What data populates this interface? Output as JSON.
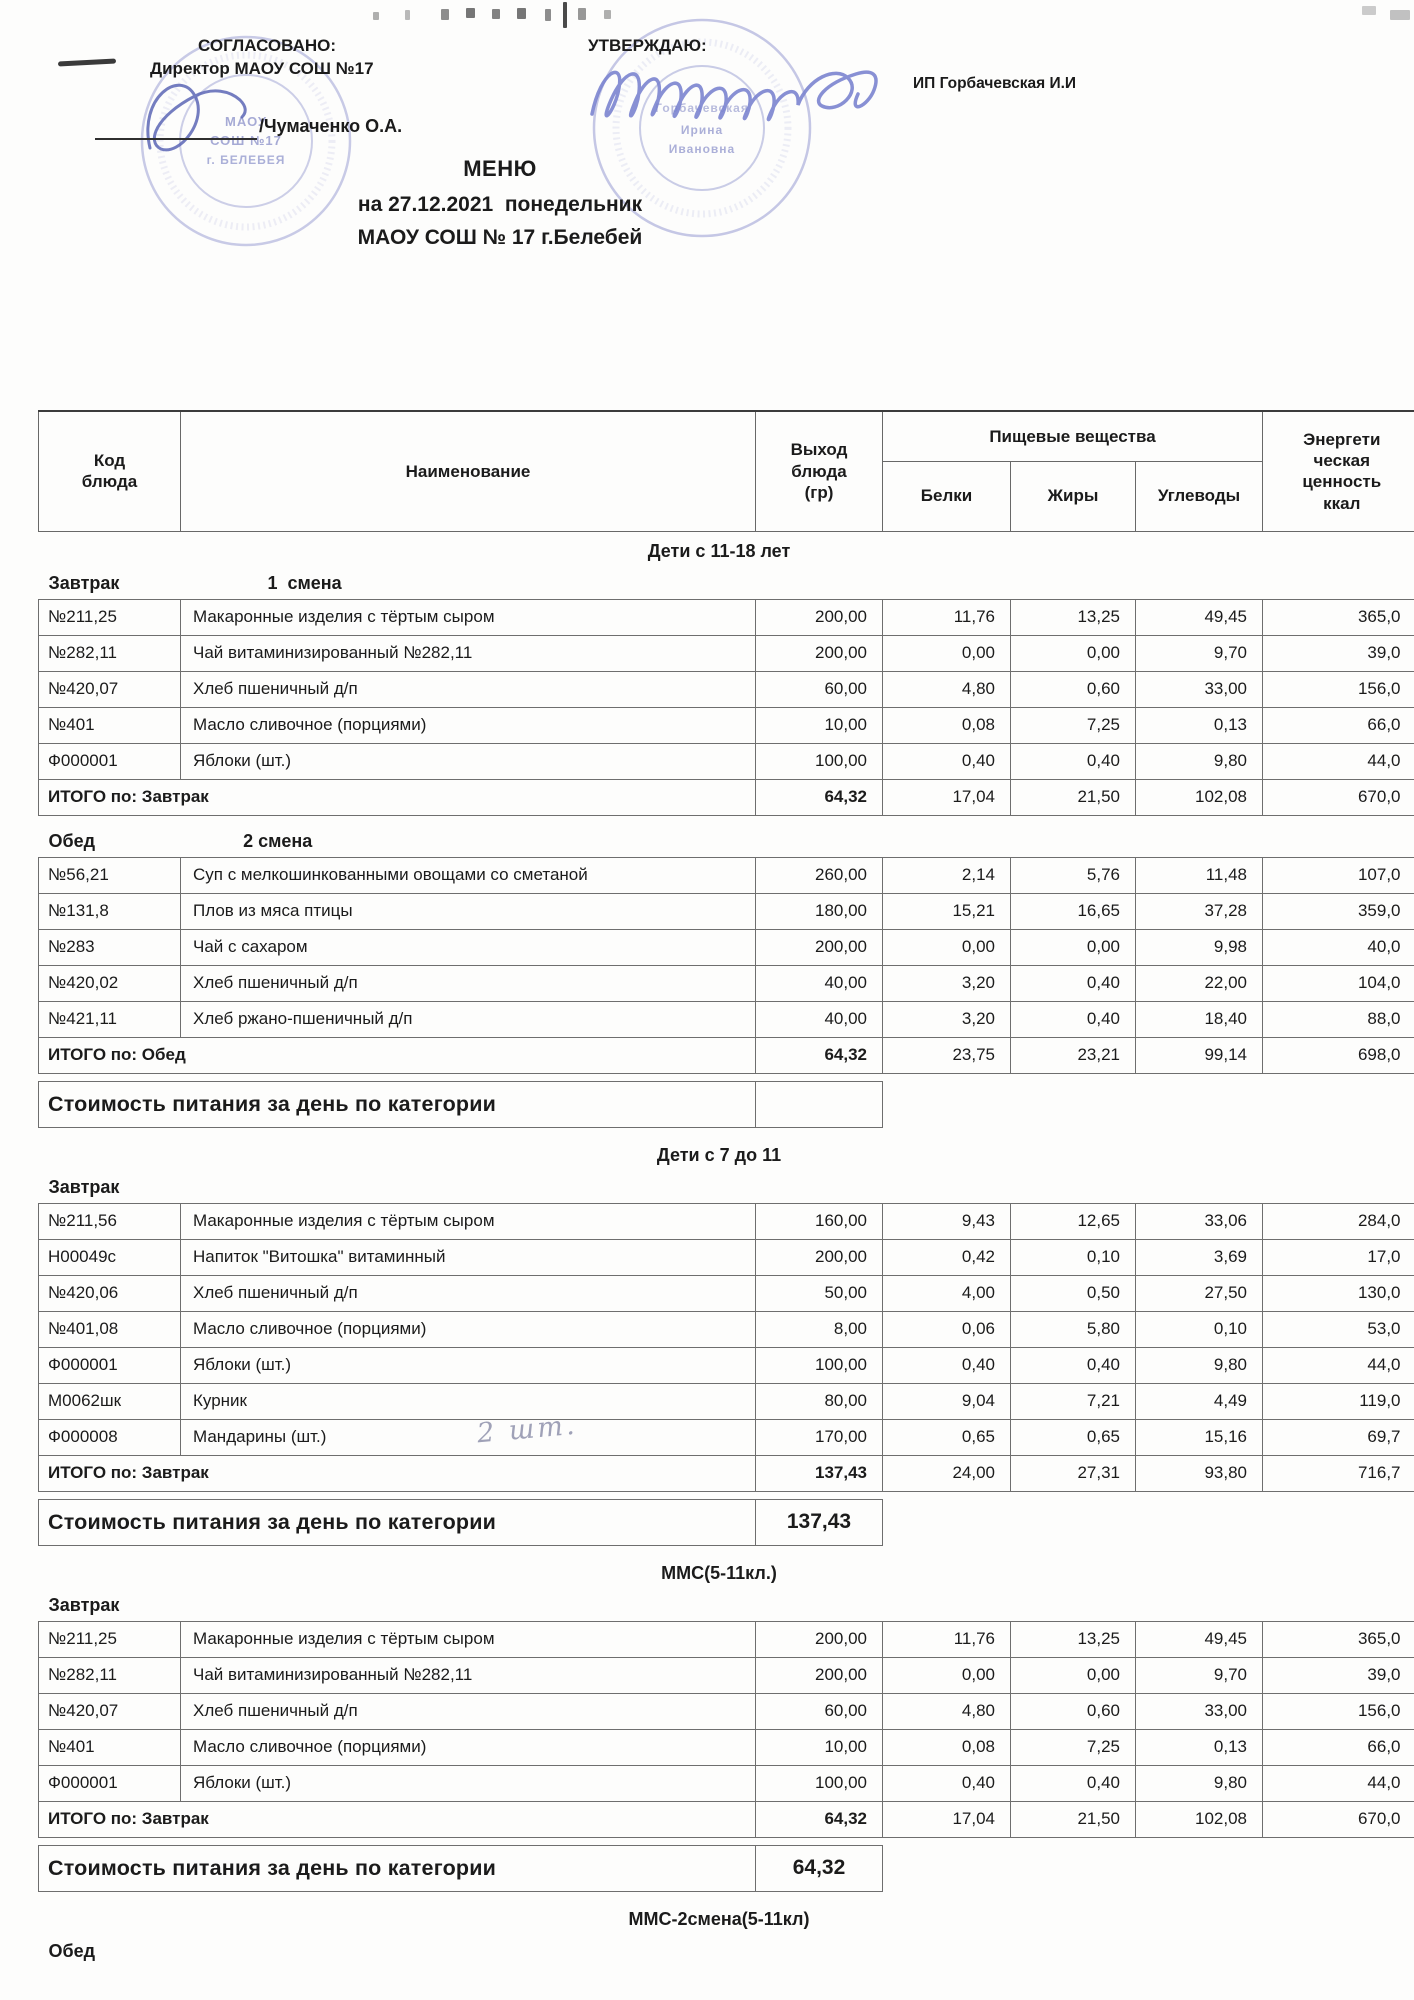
{
  "header": {
    "agreed_label": "СОГЛАСОВАНО:",
    "agreed_role": "Директор МАОУ СОШ №17",
    "agreed_signature": "/Чумаченко О.А.",
    "approved_label": "УТВЕРЖДАЮ:",
    "approved_name": "ИП Горбачевская И.И",
    "title": "МЕНЮ",
    "date_line": "на 27.12.2021  понедельник",
    "school_line": "МАОУ СОШ № 17 г.Белебей",
    "stamp_left_lines": [
      "МАОУ",
      "СОШ №17",
      "г. БЕЛЕБЕЯ"
    ],
    "stamp_right_lines": [
      "Горбачевская",
      "Ирина",
      "Ивановна"
    ],
    "stamp_color": "#8a90cc"
  },
  "columns": {
    "code": "Код\nблюда",
    "name": "Наименование",
    "out": "Выход\nблюда\n(гр)",
    "nutrients": "Пищевые вещества",
    "protein": "Белки",
    "fat": "Жиры",
    "carbs": "Углеводы",
    "energy": "Энергети\nческая\nценность\nккал"
  },
  "sections": [
    {
      "group": "Дети с 11-18 лет",
      "blocks": [
        {
          "meal": "Завтрак",
          "shift": "1  смена",
          "rows": [
            {
              "code": "№211,25",
              "name": "Макаронные изделия с тёртым сыром",
              "out": "200,00",
              "protein": "11,76",
              "fat": "13,25",
              "carbs": "49,45",
              "energy": "365,0"
            },
            {
              "code": "№282,11",
              "name": "Чай витаминизированный №282,11",
              "out": "200,00",
              "protein": "0,00",
              "fat": "0,00",
              "carbs": "9,70",
              "energy": "39,0"
            },
            {
              "code": "№420,07",
              "name": "Хлеб пшеничный д/п",
              "out": "60,00",
              "protein": "4,80",
              "fat": "0,60",
              "carbs": "33,00",
              "energy": "156,0"
            },
            {
              "code": "№401",
              "name": "Масло сливочное (порциями)",
              "out": "10,00",
              "protein": "0,08",
              "fat": "7,25",
              "carbs": "0,13",
              "energy": "66,0"
            },
            {
              "code": "Ф000001",
              "name": "Яблоки (шт.)",
              "out": "100,00",
              "protein": "0,40",
              "fat": "0,40",
              "carbs": "9,80",
              "energy": "44,0"
            }
          ],
          "total": {
            "label": "ИТОГО по: Завтрак",
            "out": "64,32",
            "protein": "17,04",
            "fat": "21,50",
            "carbs": "102,08",
            "energy": "670,0"
          }
        },
        {
          "meal": "Обед",
          "shift": "2 смена",
          "rows": [
            {
              "code": "№56,21",
              "name": "Суп с мелкошинкованными овощами со сметаной",
              "out": "260,00",
              "protein": "2,14",
              "fat": "5,76",
              "carbs": "11,48",
              "energy": "107,0"
            },
            {
              "code": "№131,8",
              "name": "Плов из мяса птицы",
              "out": "180,00",
              "protein": "15,21",
              "fat": "16,65",
              "carbs": "37,28",
              "energy": "359,0"
            },
            {
              "code": "№283",
              "name": "Чай с сахаром",
              "out": "200,00",
              "protein": "0,00",
              "fat": "0,00",
              "carbs": "9,98",
              "energy": "40,0"
            },
            {
              "code": "№420,02",
              "name": "Хлеб пшеничный д/п",
              "out": "40,00",
              "protein": "3,20",
              "fat": "0,40",
              "carbs": "22,00",
              "energy": "104,0"
            },
            {
              "code": "№421,11",
              "name": "Хлеб ржано-пшеничный д/п",
              "out": "40,00",
              "protein": "3,20",
              "fat": "0,40",
              "carbs": "18,40",
              "energy": "88,0"
            }
          ],
          "total": {
            "label": "ИТОГО по: Обед",
            "out": "64,32",
            "protein": "23,75",
            "fat": "23,21",
            "carbs": "99,14",
            "energy": "698,0"
          }
        }
      ],
      "cost": {
        "label": "Стоимость питания за день по категории",
        "value": ""
      }
    },
    {
      "group": "Дети с 7 до 11",
      "blocks": [
        {
          "meal": "Завтрак",
          "rows": [
            {
              "code": "№211,56",
              "name": "Макаронные изделия с тёртым сыром",
              "out": "160,00",
              "protein": "9,43",
              "fat": "12,65",
              "carbs": "33,06",
              "energy": "284,0"
            },
            {
              "code": "Н00049с",
              "name": "Напиток \"Витошка\" витаминный",
              "out": "200,00",
              "protein": "0,42",
              "fat": "0,10",
              "carbs": "3,69",
              "energy": "17,0"
            },
            {
              "code": "№420,06",
              "name": "Хлеб пшеничный д/п",
              "out": "50,00",
              "protein": "4,00",
              "fat": "0,50",
              "carbs": "27,50",
              "energy": "130,0"
            },
            {
              "code": "№401,08",
              "name": "Масло сливочное (порциями)",
              "out": "8,00",
              "protein": "0,06",
              "fat": "5,80",
              "carbs": "0,10",
              "energy": "53,0"
            },
            {
              "code": "Ф000001",
              "name": "Яблоки (шт.)",
              "out": "100,00",
              "protein": "0,40",
              "fat": "0,40",
              "carbs": "9,80",
              "energy": "44,0"
            },
            {
              "code": "М0062шк",
              "name": "Курник",
              "out": "80,00",
              "protein": "9,04",
              "fat": "7,21",
              "carbs": "4,49",
              "energy": "119,0"
            },
            {
              "code": "Ф000008",
              "name": "Мандарины (шт.)",
              "note": "2 шт.",
              "out": "170,00",
              "protein": "0,65",
              "fat": "0,65",
              "carbs": "15,16",
              "energy": "69,7"
            }
          ],
          "total": {
            "label": "ИТОГО по: Завтрак",
            "out": "137,43",
            "protein": "24,00",
            "fat": "27,31",
            "carbs": "93,80",
            "energy": "716,7"
          }
        }
      ],
      "cost": {
        "label": "Стоимость питания за день по категории",
        "value": "137,43"
      }
    },
    {
      "group": "ММС(5-11кл.)",
      "blocks": [
        {
          "meal": "Завтрак",
          "rows": [
            {
              "code": "№211,25",
              "name": "Макаронные изделия с тёртым сыром",
              "out": "200,00",
              "protein": "11,76",
              "fat": "13,25",
              "carbs": "49,45",
              "energy": "365,0"
            },
            {
              "code": "№282,11",
              "name": "Чай витаминизированный №282,11",
              "out": "200,00",
              "protein": "0,00",
              "fat": "0,00",
              "carbs": "9,70",
              "energy": "39,0"
            },
            {
              "code": "№420,07",
              "name": "Хлеб пшеничный д/п",
              "out": "60,00",
              "protein": "4,80",
              "fat": "0,60",
              "carbs": "33,00",
              "energy": "156,0"
            },
            {
              "code": "№401",
              "name": "Масло сливочное (порциями)",
              "out": "10,00",
              "protein": "0,08",
              "fat": "7,25",
              "carbs": "0,13",
              "energy": "66,0"
            },
            {
              "code": "Ф000001",
              "name": "Яблоки (шт.)",
              "out": "100,00",
              "protein": "0,40",
              "fat": "0,40",
              "carbs": "9,80",
              "energy": "44,0"
            }
          ],
          "total": {
            "label": "ИТОГО по: Завтрак",
            "out": "64,32",
            "protein": "17,04",
            "fat": "21,50",
            "carbs": "102,08",
            "energy": "670,0"
          }
        }
      ],
      "cost": {
        "label": "Стоимость питания за день по категории",
        "value": "64,32"
      }
    },
    {
      "group": "ММС-2смена(5-11кл)",
      "blocks": [
        {
          "meal": "Обед",
          "rows": []
        }
      ]
    }
  ]
}
